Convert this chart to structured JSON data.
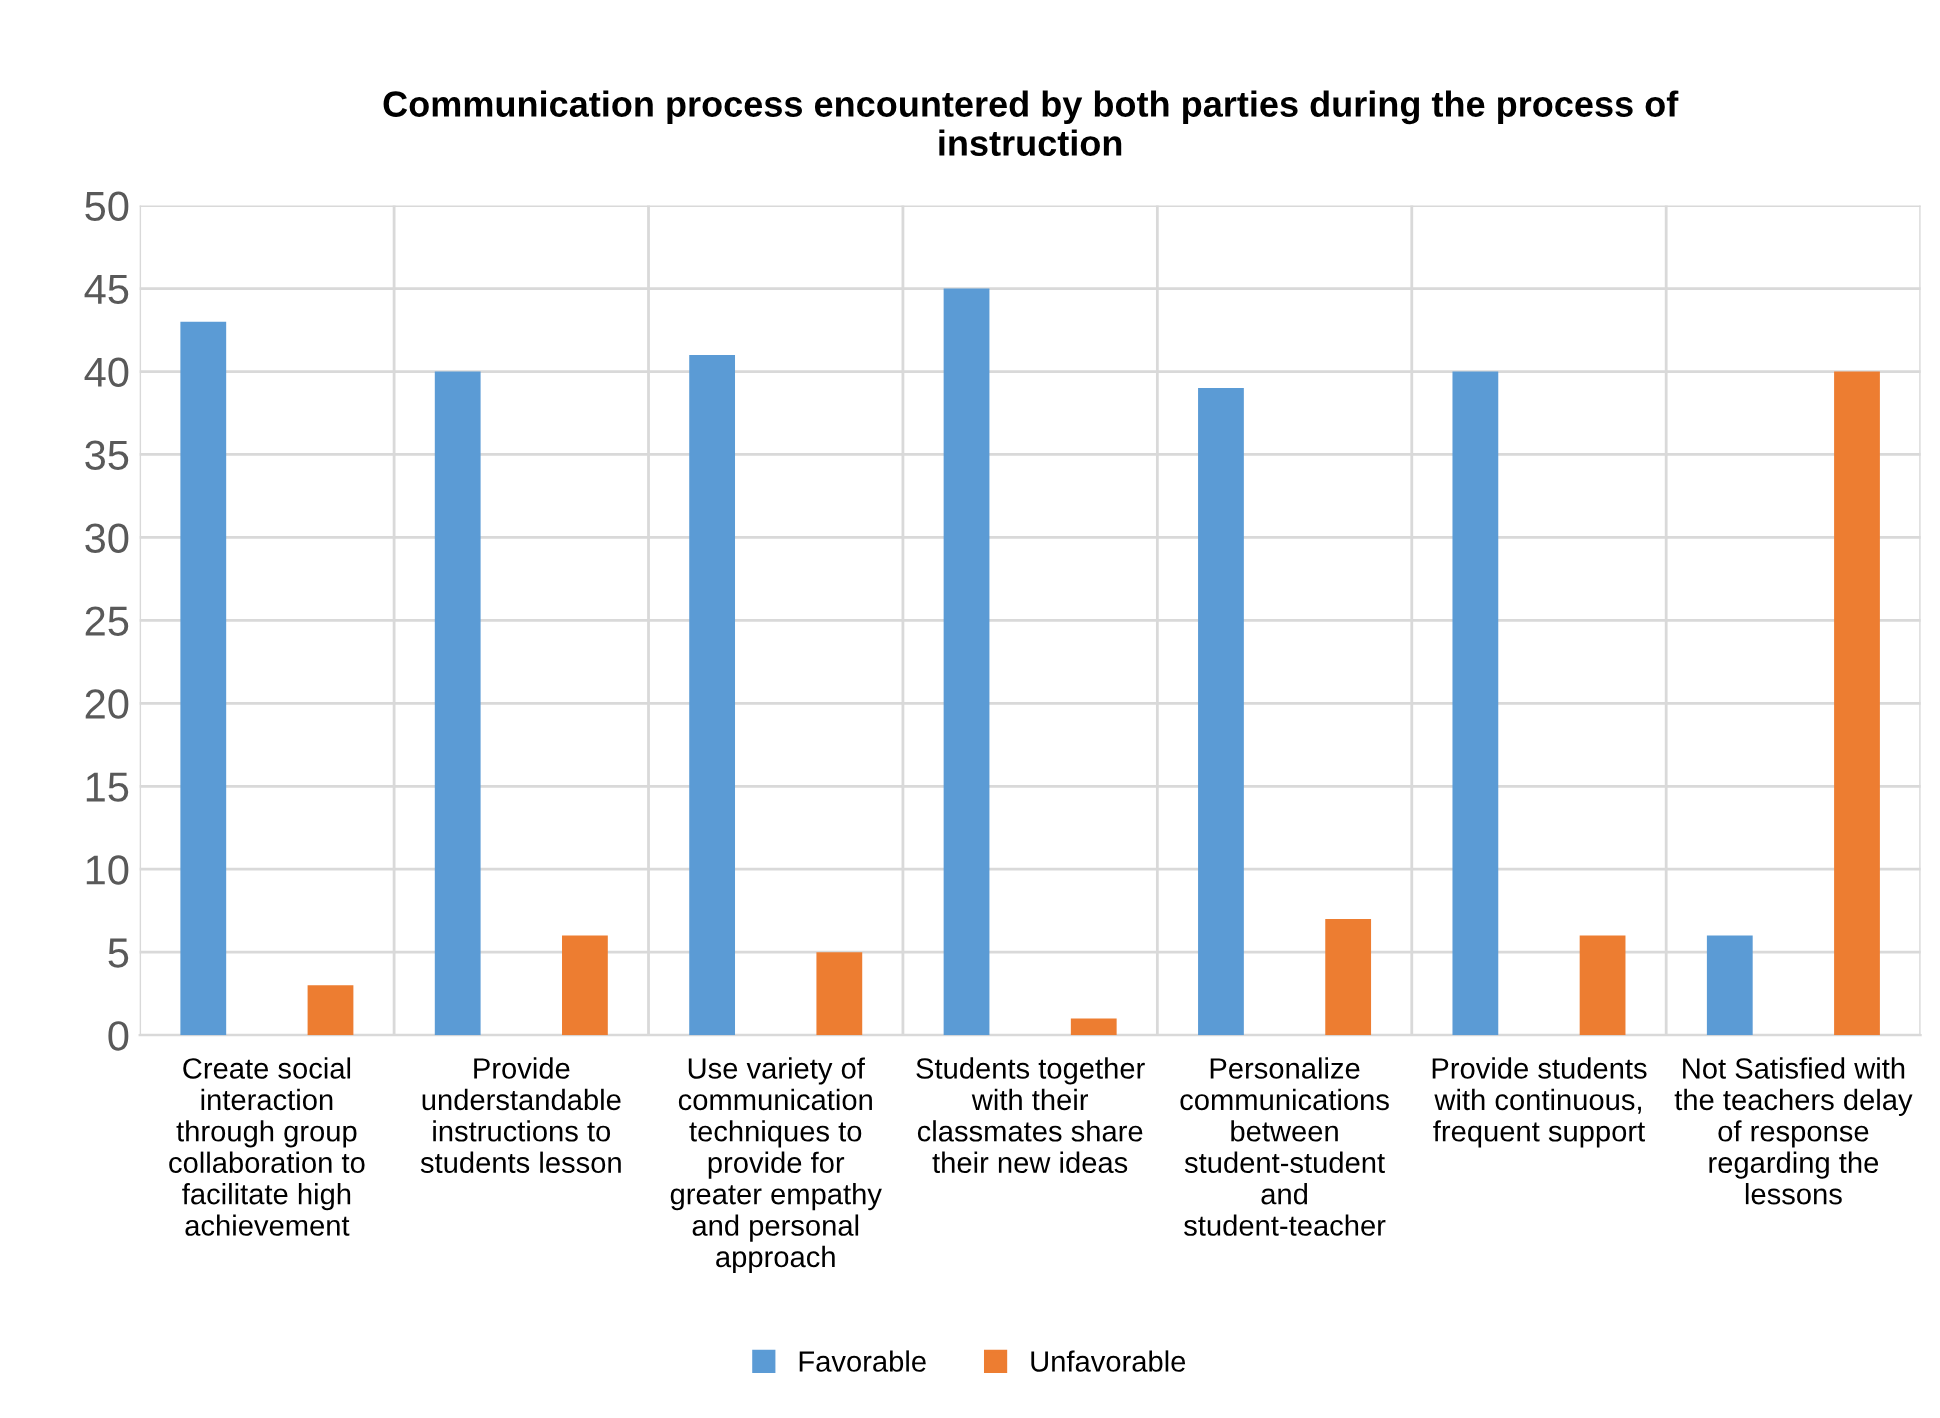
{
  "chart_data": {
    "type": "bar",
    "title": "Communication process encountered by both parties during the process of instruction",
    "categories": [
      "Create social interaction through group collaboration to facilitate high achievement",
      "Provide understandable instructions to students lesson",
      "Use variety of communication techniques to provide for greater empathy and personal approach",
      "Students together with their classmates share their new ideas",
      "Personalize communications between student-student and student-teacher",
      "Provide students with continuous, frequent support",
      "Not Satisfied with the teachers delay of response regarding the lessons"
    ],
    "series": [
      {
        "name": "Favorable",
        "color": "#5b9bd5",
        "values": [
          43,
          40,
          41,
          45,
          39,
          40,
          6
        ]
      },
      {
        "name": "Unfavorable",
        "color": "#ed7d31",
        "values": [
          3,
          6,
          5,
          1,
          7,
          6,
          40
        ]
      }
    ],
    "ylim": [
      0,
      50
    ],
    "yticks": [
      0,
      5,
      10,
      15,
      20,
      25,
      30,
      35,
      40,
      45,
      50
    ],
    "grid": true,
    "legend": "bottom"
  }
}
